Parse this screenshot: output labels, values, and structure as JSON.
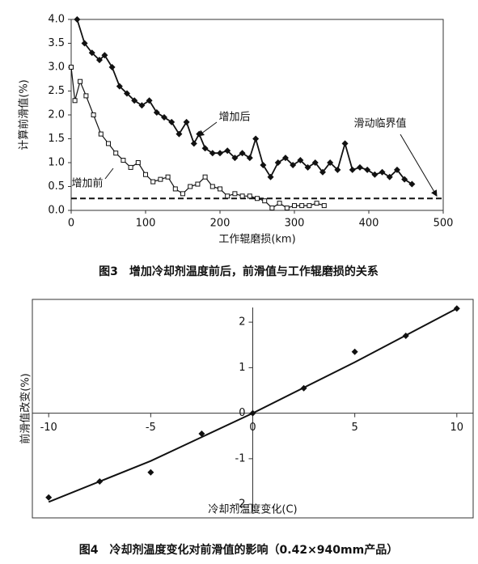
{
  "chart_data": [
    {
      "type": "line",
      "ylabel": "计算前滑值(%)",
      "xlabel": "工作辊磨损(km)",
      "caption": "图3　增加冷却剂温度前后，前滑值与工作辊磨损的关系",
      "xlim": [
        0,
        500
      ],
      "ylim": [
        0,
        4
      ],
      "xticks": [
        0,
        100,
        200,
        300,
        400,
        500
      ],
      "yticks": [
        {
          "value": 0,
          "label": "0.0"
        },
        0.5,
        {
          "value": 1,
          "label": "1.0"
        },
        1.5,
        {
          "value": 2,
          "label": "2.0"
        },
        2.5,
        {
          "value": 3,
          "label": "3.0"
        },
        3.5,
        {
          "value": 4,
          "label": "4.0"
        }
      ],
      "series": [
        {
          "name": "增加后",
          "color": "#111111",
          "marker": "diamond",
          "x": [
            8,
            18,
            28,
            38,
            45,
            55,
            65,
            75,
            85,
            95,
            105,
            115,
            125,
            135,
            145,
            155,
            165,
            172,
            180,
            190,
            200,
            210,
            220,
            230,
            240,
            248,
            258,
            268,
            278,
            288,
            298,
            308,
            318,
            328,
            338,
            348,
            358,
            368,
            378,
            388,
            398,
            408,
            418,
            428,
            438,
            448,
            458
          ],
          "values": [
            4.0,
            3.5,
            3.3,
            3.15,
            3.25,
            3.0,
            2.6,
            2.45,
            2.3,
            2.2,
            2.3,
            2.05,
            1.95,
            1.85,
            1.6,
            1.85,
            1.4,
            1.6,
            1.3,
            1.2,
            1.2,
            1.25,
            1.1,
            1.2,
            1.1,
            1.5,
            0.95,
            0.7,
            1.0,
            1.1,
            0.95,
            1.05,
            0.9,
            1.0,
            0.8,
            1.0,
            0.85,
            1.4,
            0.85,
            0.9,
            0.85,
            0.75,
            0.8,
            0.7,
            0.85,
            0.65,
            0.55
          ]
        },
        {
          "name": "增加前",
          "color": "#111111",
          "marker": "square-open",
          "x": [
            0,
            5,
            12,
            20,
            30,
            40,
            50,
            60,
            70,
            80,
            90,
            100,
            110,
            120,
            130,
            140,
            150,
            160,
            170,
            180,
            190,
            200,
            210,
            220,
            230,
            240,
            250,
            260,
            270,
            280,
            290,
            300,
            310,
            320,
            330,
            340
          ],
          "values": [
            3.0,
            2.3,
            2.7,
            2.4,
            2.0,
            1.6,
            1.4,
            1.2,
            1.05,
            0.9,
            1.0,
            0.75,
            0.6,
            0.65,
            0.7,
            0.45,
            0.35,
            0.5,
            0.55,
            0.7,
            0.5,
            0.45,
            0.3,
            0.35,
            0.3,
            0.3,
            0.25,
            0.2,
            0.05,
            0.15,
            0.05,
            0.1,
            0.1,
            0.1,
            0.15,
            0.1
          ]
        }
      ],
      "reference_line": {
        "value": 0.25,
        "label": "滑动临界值"
      }
    },
    {
      "type": "scatter",
      "ylabel": "前滑值改变(%)",
      "xlabel": "冷却剂温度变化(C)",
      "caption": "图4　冷却剂温度变化对前滑值的影响（0.42×940mm产品）",
      "xlim": [
        -10.8,
        10.8
      ],
      "ylim": [
        -2.3,
        2.5
      ],
      "xticks": [
        -10,
        -5,
        0,
        5,
        10
      ],
      "yticks": [
        -2,
        -1,
        0,
        1,
        2
      ],
      "color": "#111111",
      "marker": "diamond",
      "x": [
        -10,
        -7.5,
        -5,
        -2.5,
        0,
        2.5,
        5,
        7.5,
        10
      ],
      "values": [
        -1.85,
        -1.5,
        -1.3,
        -0.45,
        0,
        0.55,
        1.35,
        1.7,
        2.3
      ],
      "fit": {
        "x": [
          -10,
          -5,
          0,
          5,
          10
        ],
        "values": [
          -1.95,
          -1.05,
          0,
          1.12,
          2.3
        ]
      }
    }
  ]
}
